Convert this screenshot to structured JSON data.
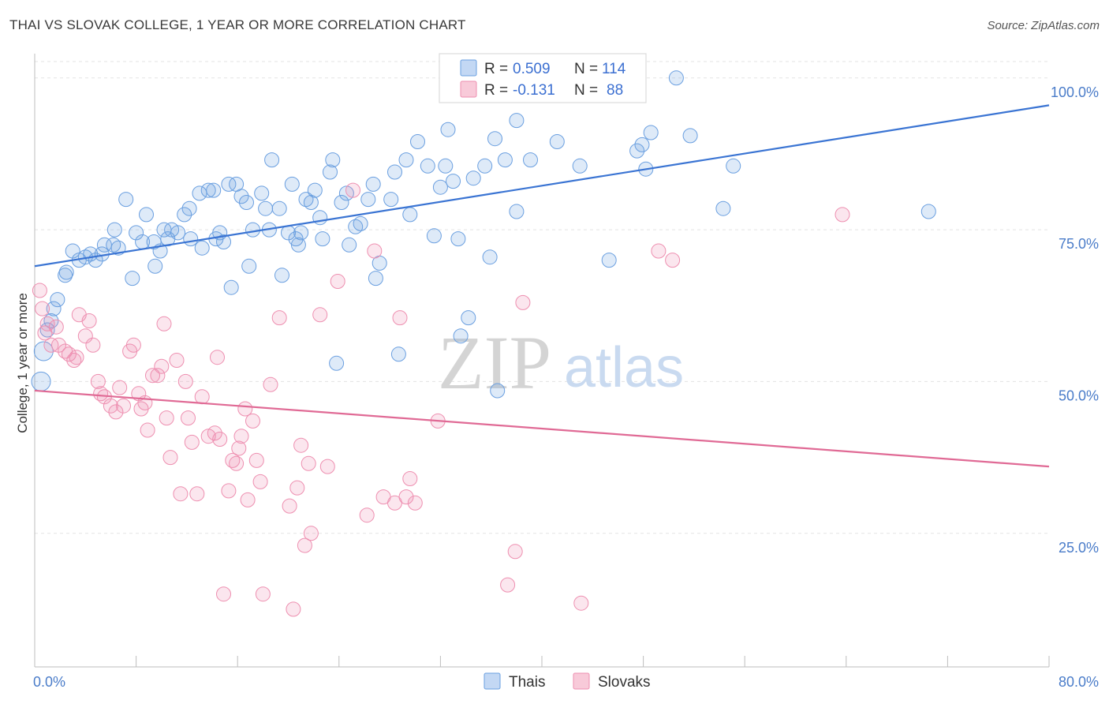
{
  "header": {
    "title": "THAI VS SLOVAK COLLEGE, 1 YEAR OR MORE CORRELATION CHART",
    "source": "Source: ZipAtlas.com"
  },
  "watermark": {
    "zip": "ZIP",
    "atlas": "atlas"
  },
  "legend": {
    "rows": [
      {
        "r_label": "R =",
        "r_value": "0.509",
        "n_label": "N =",
        "n_value": "114",
        "color": "#6a9fe0"
      },
      {
        "r_label": "R =",
        "r_value": "-0.131",
        "n_label": "N =",
        "n_value": "88",
        "color": "#ee8fb0"
      }
    ]
  },
  "bottom_legend": [
    {
      "label": "Thais",
      "color": "#6a9fe0"
    },
    {
      "label": "Slovaks",
      "color": "#ee8fb0"
    }
  ],
  "chart_data": {
    "type": "scatter",
    "title": "THAI VS SLOVAK COLLEGE, 1 YEAR OR MORE CORRELATION CHART",
    "ylabel": "College, 1 year or more",
    "xlabel": "",
    "xlim": [
      0,
      80
    ],
    "ylim": [
      3,
      104
    ],
    "x_tick_labels": [
      "0.0%",
      "80.0%"
    ],
    "y_ticks": [
      25,
      50,
      75,
      100
    ],
    "y_tick_labels": [
      "25.0%",
      "50.0%",
      "75.0%",
      "100.0%"
    ],
    "grid": true,
    "legend_position": "top-center",
    "series": [
      {
        "name": "Thais",
        "color": "#6a9fe0",
        "r": 0.509,
        "n": 114,
        "trend": [
          [
            0,
            69
          ],
          [
            80,
            95.5
          ]
        ],
        "points": [
          [
            0.5,
            50
          ],
          [
            0.7,
            55
          ],
          [
            1,
            58.5
          ],
          [
            1.3,
            60
          ],
          [
            1.5,
            62
          ],
          [
            1.8,
            63.5
          ],
          [
            2.4,
            67.5
          ],
          [
            2.5,
            68
          ],
          [
            3,
            71.5
          ],
          [
            3.5,
            70
          ],
          [
            4,
            70.5
          ],
          [
            4.4,
            71
          ],
          [
            4.8,
            70
          ],
          [
            5.3,
            71
          ],
          [
            5.5,
            72.5
          ],
          [
            6.2,
            72.5
          ],
          [
            6.3,
            75
          ],
          [
            6.6,
            72
          ],
          [
            7.2,
            80
          ],
          [
            7.7,
            67
          ],
          [
            8,
            74.5
          ],
          [
            8.5,
            73
          ],
          [
            8.8,
            77.5
          ],
          [
            9.4,
            73
          ],
          [
            9.5,
            69
          ],
          [
            9.9,
            71.5
          ],
          [
            10.2,
            75
          ],
          [
            10.5,
            73.5
          ],
          [
            10.8,
            75
          ],
          [
            11.3,
            74.5
          ],
          [
            11.8,
            77.5
          ],
          [
            12.2,
            78.5
          ],
          [
            12.3,
            73.5
          ],
          [
            13,
            81
          ],
          [
            13.2,
            72
          ],
          [
            13.7,
            81.5
          ],
          [
            14.1,
            81.5
          ],
          [
            14.3,
            73.5
          ],
          [
            14.6,
            74.5
          ],
          [
            14.9,
            73
          ],
          [
            15.3,
            82.5
          ],
          [
            15.5,
            65.5
          ],
          [
            15.9,
            82.5
          ],
          [
            16.3,
            80.5
          ],
          [
            16.7,
            79.5
          ],
          [
            16.9,
            69
          ],
          [
            17.2,
            75
          ],
          [
            17.9,
            81
          ],
          [
            18.2,
            78.5
          ],
          [
            18.5,
            75
          ],
          [
            18.7,
            86.5
          ],
          [
            19.3,
            78.5
          ],
          [
            19.5,
            67.5
          ],
          [
            20,
            74.5
          ],
          [
            20.3,
            82.5
          ],
          [
            20.6,
            73.5
          ],
          [
            20.8,
            72.5
          ],
          [
            21,
            74.5
          ],
          [
            21.4,
            80
          ],
          [
            21.8,
            79.5
          ],
          [
            22.1,
            81.5
          ],
          [
            22.5,
            77
          ],
          [
            22.7,
            73.5
          ],
          [
            23.3,
            84.5
          ],
          [
            23.5,
            86.5
          ],
          [
            23.8,
            53
          ],
          [
            24.2,
            79.5
          ],
          [
            24.6,
            81
          ],
          [
            24.8,
            72.5
          ],
          [
            25.3,
            75.5
          ],
          [
            25.7,
            76
          ],
          [
            26.3,
            80
          ],
          [
            26.7,
            82.5
          ],
          [
            26.9,
            67
          ],
          [
            27.2,
            69.5
          ],
          [
            28.1,
            80
          ],
          [
            28.4,
            84.5
          ],
          [
            28.7,
            54.5
          ],
          [
            29.3,
            86.5
          ],
          [
            29.6,
            77.5
          ],
          [
            30.2,
            89.5
          ],
          [
            31,
            85.5
          ],
          [
            31.5,
            74
          ],
          [
            32,
            82
          ],
          [
            32.4,
            85.5
          ],
          [
            32.6,
            91.5
          ],
          [
            33,
            83
          ],
          [
            33.4,
            73.5
          ],
          [
            33.6,
            57.5
          ],
          [
            34.2,
            60.5
          ],
          [
            34.6,
            83.5
          ],
          [
            35.5,
            85.5
          ],
          [
            35.9,
            70.5
          ],
          [
            36.3,
            90
          ],
          [
            36.5,
            48.5
          ],
          [
            37.1,
            86.5
          ],
          [
            38,
            78
          ],
          [
            38,
            93
          ],
          [
            39.1,
            86.5
          ],
          [
            41.2,
            89.5
          ],
          [
            43,
            85.5
          ],
          [
            45.3,
            70
          ],
          [
            47.5,
            88
          ],
          [
            47.9,
            89
          ],
          [
            48.2,
            85
          ],
          [
            48.6,
            91
          ],
          [
            50.6,
            100
          ],
          [
            51.7,
            90.5
          ],
          [
            54.3,
            78.5
          ],
          [
            55.1,
            85.5
          ],
          [
            70.5,
            78
          ]
        ]
      },
      {
        "name": "Slovaks",
        "color": "#ee8fb0",
        "r": -0.131,
        "n": 88,
        "trend": [
          [
            0,
            48.5
          ],
          [
            80,
            36
          ]
        ],
        "points": [
          [
            0.4,
            65
          ],
          [
            0.6,
            62
          ],
          [
            0.8,
            58
          ],
          [
            1,
            59.5
          ],
          [
            1.3,
            56
          ],
          [
            1.7,
            59
          ],
          [
            1.9,
            56
          ],
          [
            2.4,
            55
          ],
          [
            2.7,
            54.5
          ],
          [
            3.1,
            53.5
          ],
          [
            3.3,
            54
          ],
          [
            3.5,
            61
          ],
          [
            4,
            57.5
          ],
          [
            4.3,
            60
          ],
          [
            4.6,
            56
          ],
          [
            5,
            50
          ],
          [
            5.2,
            48
          ],
          [
            5.5,
            47.5
          ],
          [
            6,
            46
          ],
          [
            6.4,
            45
          ],
          [
            6.7,
            49
          ],
          [
            7,
            46
          ],
          [
            7.5,
            55
          ],
          [
            7.8,
            56
          ],
          [
            8.2,
            48
          ],
          [
            8.4,
            45.5
          ],
          [
            8.7,
            46.5
          ],
          [
            8.9,
            42
          ],
          [
            9.3,
            51
          ],
          [
            9.7,
            51
          ],
          [
            10,
            52.5
          ],
          [
            10.2,
            59.5
          ],
          [
            10.4,
            44
          ],
          [
            10.7,
            37.5
          ],
          [
            11.2,
            53.5
          ],
          [
            11.5,
            31.5
          ],
          [
            11.9,
            50
          ],
          [
            12.1,
            44
          ],
          [
            12.4,
            40
          ],
          [
            12.8,
            31.5
          ],
          [
            13.2,
            47.5
          ],
          [
            13.7,
            41
          ],
          [
            14.2,
            41.5
          ],
          [
            14.4,
            54
          ],
          [
            14.6,
            40.5
          ],
          [
            14.9,
            15
          ],
          [
            15.3,
            32
          ],
          [
            15.6,
            37
          ],
          [
            15.9,
            36.5
          ],
          [
            16.1,
            39
          ],
          [
            16.3,
            41
          ],
          [
            16.6,
            45.5
          ],
          [
            16.8,
            30.5
          ],
          [
            17.2,
            43.5
          ],
          [
            17.5,
            37
          ],
          [
            17.8,
            33.5
          ],
          [
            18,
            15
          ],
          [
            18.6,
            49.5
          ],
          [
            19.3,
            60.5
          ],
          [
            20.1,
            29.5
          ],
          [
            20.4,
            12.5
          ],
          [
            20.7,
            32.5
          ],
          [
            21,
            39.5
          ],
          [
            21.3,
            23
          ],
          [
            21.6,
            36.5
          ],
          [
            21.8,
            25
          ],
          [
            22.5,
            61
          ],
          [
            23.1,
            36
          ],
          [
            23.9,
            66.5
          ],
          [
            25.1,
            81.5
          ],
          [
            26.2,
            28
          ],
          [
            26.8,
            71.5
          ],
          [
            27.5,
            31
          ],
          [
            28.4,
            30
          ],
          [
            28.8,
            60.5
          ],
          [
            29.3,
            31
          ],
          [
            29.6,
            34
          ],
          [
            30,
            30
          ],
          [
            31.8,
            43.5
          ],
          [
            37.3,
            16.5
          ],
          [
            37.9,
            22
          ],
          [
            38.5,
            63
          ],
          [
            43.1,
            13.5
          ],
          [
            49.2,
            71.5
          ],
          [
            50.3,
            70
          ],
          [
            63.7,
            77.5
          ]
        ]
      }
    ]
  }
}
